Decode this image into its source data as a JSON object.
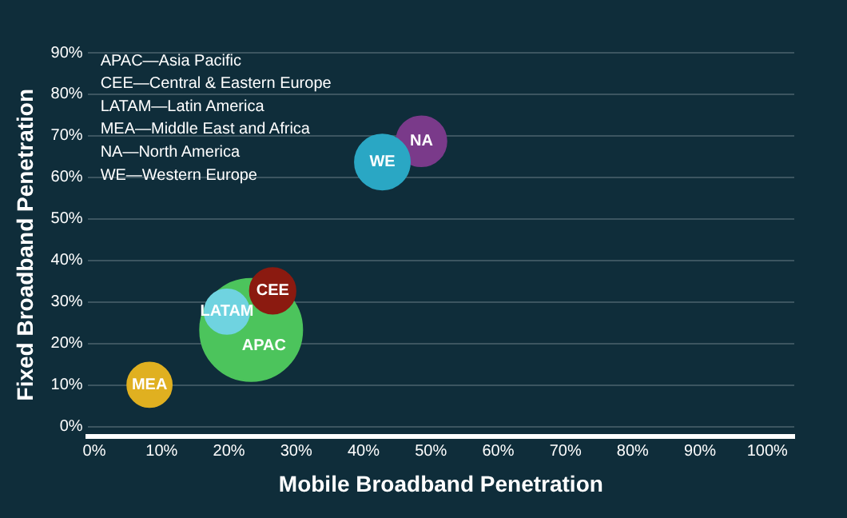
{
  "chart_data": {
    "type": "bubble",
    "xlabel": "Mobile Broadband Penetration",
    "ylabel": "Fixed Broadband Penetration",
    "annotations": [
      "APAC—Asia Pacific",
      "CEE—Central & Eastern Europe",
      "LATAM—Latin America",
      "MEA—Middle East and Africa",
      "NA—North America",
      "WE—Western Europe"
    ],
    "series": [
      {
        "name": "MEA",
        "color": "#e0b020",
        "x": [
          8.2
        ],
        "values": [
          10.1
        ],
        "sizes": [
          0.19
        ]
      },
      {
        "name": "LATAM",
        "color": "#6fd3e0",
        "x": [
          19.7
        ],
        "values": [
          27.7
        ],
        "sizes": [
          0.19
        ]
      },
      {
        "name": "CEE",
        "color": "#8b1a10",
        "x": [
          26.5
        ],
        "values": [
          32.7
        ],
        "sizes": [
          0.2
        ]
      },
      {
        "name": "WE",
        "color": "#2aa7c4",
        "x": [
          42.8
        ],
        "values": [
          63.7
        ],
        "sizes": [
          0.29
        ]
      },
      {
        "name": "NA",
        "color": "#7a3a8a",
        "x": [
          48.6
        ],
        "values": [
          68.7
        ],
        "sizes": [
          0.24
        ]
      },
      {
        "name": "APAC",
        "color": "#4cc45c",
        "x": [
          23.3
        ],
        "values": [
          23.3
        ],
        "sizes": [
          1
        ]
      }
    ],
    "xlim": [
      -1,
      104
    ],
    "ylim": [
      -2.4,
      90
    ],
    "xticks": [
      {
        "value": 0,
        "label": "0%"
      },
      {
        "value": 10,
        "label": "10%"
      },
      {
        "value": 20,
        "label": "20%"
      },
      {
        "value": 30,
        "label": "30%"
      },
      {
        "value": 40,
        "label": "40%"
      },
      {
        "value": 50,
        "label": "50%"
      },
      {
        "value": 60,
        "label": "60%"
      },
      {
        "value": 70,
        "label": "70%"
      },
      {
        "value": 80,
        "label": "80%"
      },
      {
        "value": 90,
        "label": "90%"
      },
      {
        "value": 100,
        "label": "100%"
      }
    ],
    "yticks": [
      {
        "value": 0,
        "label": "0%"
      },
      {
        "value": 10,
        "label": "10%"
      },
      {
        "value": 20,
        "label": "20%"
      },
      {
        "value": 30,
        "label": "30%"
      },
      {
        "value": 40,
        "label": "40%"
      },
      {
        "value": 50,
        "label": "50%"
      },
      {
        "value": 60,
        "label": "60%"
      },
      {
        "value": 70,
        "label": "70%"
      },
      {
        "value": 80,
        "label": "80%"
      },
      {
        "value": 90,
        "label": "90%"
      }
    ],
    "grid": "y",
    "legend": false
  }
}
